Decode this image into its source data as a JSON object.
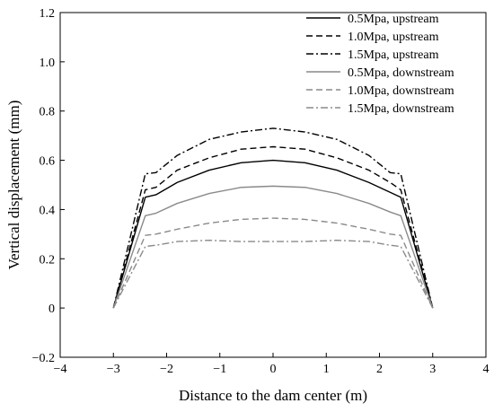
{
  "chart_data": {
    "type": "line",
    "title": "",
    "xlabel": "Distance to the dam center (m)",
    "ylabel": "Vertical displacement (mm)",
    "xlim": [
      -4,
      4
    ],
    "ylim": [
      -0.2,
      1.2
    ],
    "xticks": [
      -4,
      -3,
      -2,
      -1,
      0,
      1,
      2,
      3,
      4
    ],
    "xtick_labels": [
      "−4",
      "−3",
      "−2",
      "−1",
      "0",
      "1",
      "2",
      "3",
      "4"
    ],
    "yticks": [
      -0.2,
      0,
      0.2,
      0.4,
      0.6,
      0.8,
      1.0,
      1.2
    ],
    "ytick_labels": [
      "−0.2",
      "0",
      "0.2",
      "0.4",
      "0.6",
      "0.8",
      "1.0",
      "1.2"
    ],
    "grid": false,
    "legend_position": "top-right",
    "x": [
      -3.0,
      -2.4,
      -2.2,
      -1.8,
      -1.2,
      -0.6,
      0.0,
      0.6,
      1.2,
      1.8,
      2.2,
      2.4,
      3.0
    ],
    "series": [
      {
        "name": "0.5Mpa, upstream",
        "color": "#000000",
        "dash": "solid",
        "values": [
          0.0,
          0.45,
          0.46,
          0.51,
          0.56,
          0.59,
          0.6,
          0.59,
          0.56,
          0.51,
          0.47,
          0.45,
          0.0
        ]
      },
      {
        "name": "1.0Mpa, upstream",
        "color": "#000000",
        "dash": "dash",
        "values": [
          0.0,
          0.48,
          0.49,
          0.56,
          0.61,
          0.645,
          0.655,
          0.645,
          0.61,
          0.56,
          0.51,
          0.48,
          0.0
        ]
      },
      {
        "name": "1.5Mpa, upstream",
        "color": "#000000",
        "dash": "dashdot",
        "values": [
          0.0,
          0.545,
          0.55,
          0.62,
          0.685,
          0.715,
          0.73,
          0.715,
          0.685,
          0.62,
          0.55,
          0.545,
          0.0
        ]
      },
      {
        "name": "0.5Mpa, downstream",
        "color": "#8a8a8a",
        "dash": "solid",
        "values": [
          0.0,
          0.375,
          0.385,
          0.425,
          0.465,
          0.49,
          0.495,
          0.49,
          0.465,
          0.425,
          0.39,
          0.375,
          0.0
        ]
      },
      {
        "name": "1.0Mpa, downstream",
        "color": "#8a8a8a",
        "dash": "dash",
        "values": [
          0.0,
          0.295,
          0.3,
          0.32,
          0.345,
          0.36,
          0.365,
          0.36,
          0.345,
          0.32,
          0.3,
          0.295,
          0.0
        ]
      },
      {
        "name": "1.5Mpa, downstream",
        "color": "#8a8a8a",
        "dash": "dashdot",
        "values": [
          0.0,
          0.25,
          0.255,
          0.27,
          0.275,
          0.27,
          0.27,
          0.27,
          0.275,
          0.27,
          0.255,
          0.25,
          0.0
        ]
      }
    ]
  }
}
